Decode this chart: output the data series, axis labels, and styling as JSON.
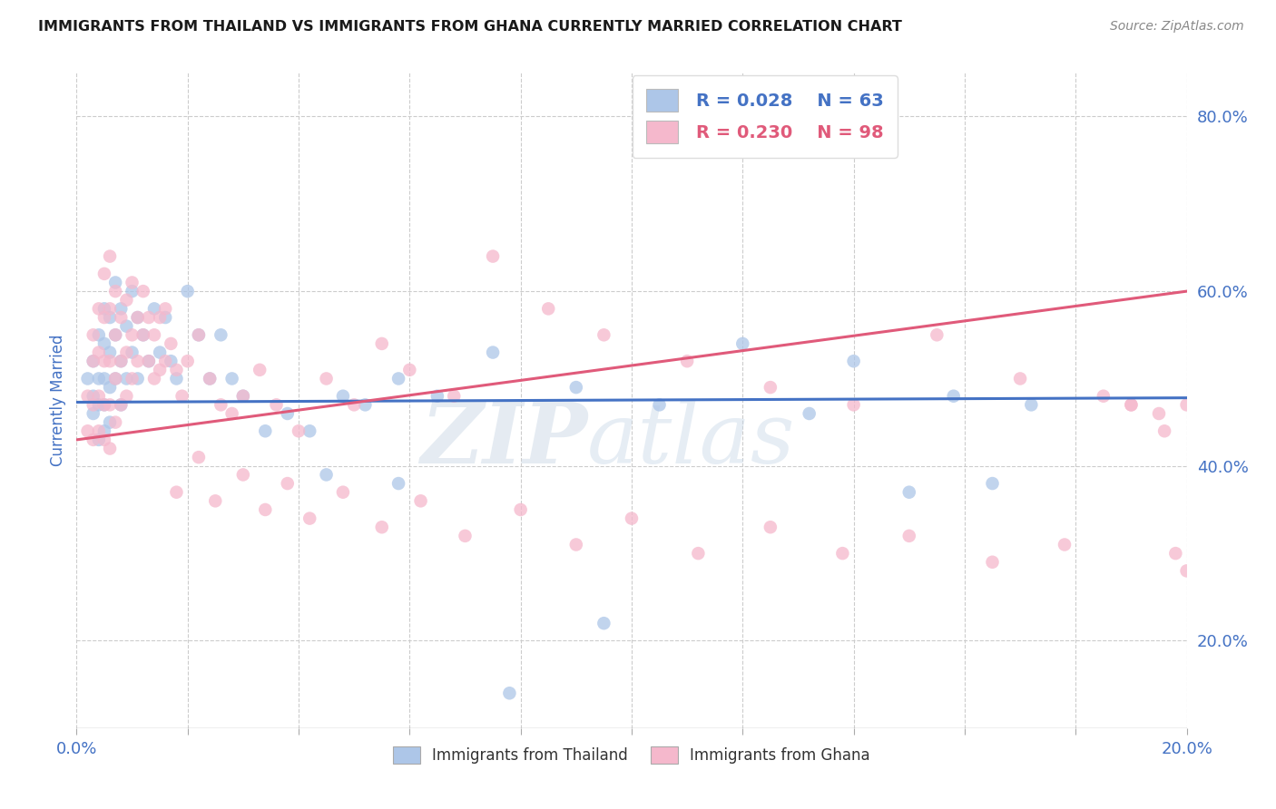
{
  "title": "IMMIGRANTS FROM THAILAND VS IMMIGRANTS FROM GHANA CURRENTLY MARRIED CORRELATION CHART",
  "source": "Source: ZipAtlas.com",
  "ylabel": "Currently Married",
  "xlim": [
    0.0,
    0.2
  ],
  "ylim": [
    0.1,
    0.85
  ],
  "yticks": [
    0.2,
    0.4,
    0.6,
    0.8
  ],
  "ytick_labels": [
    "20.0%",
    "40.0%",
    "60.0%",
    "80.0%"
  ],
  "xticks": [
    0.0,
    0.02,
    0.04,
    0.06,
    0.08,
    0.1,
    0.12,
    0.14,
    0.16,
    0.18,
    0.2
  ],
  "xtick_labels_show": [
    "0.0%",
    "20.0%"
  ],
  "thailand_color": "#adc6e8",
  "ghana_color": "#f5b8cc",
  "thailand_line_color": "#4472c4",
  "ghana_line_color": "#e05a7a",
  "legend_R_thailand": "R = 0.028",
  "legend_N_thailand": "N = 63",
  "legend_R_ghana": "R = 0.230",
  "legend_N_ghana": "N = 98",
  "thailand_scatter_x": [
    0.002,
    0.003,
    0.003,
    0.003,
    0.004,
    0.004,
    0.004,
    0.004,
    0.005,
    0.005,
    0.005,
    0.005,
    0.005,
    0.006,
    0.006,
    0.006,
    0.006,
    0.007,
    0.007,
    0.007,
    0.008,
    0.008,
    0.008,
    0.009,
    0.009,
    0.01,
    0.01,
    0.011,
    0.011,
    0.012,
    0.013,
    0.014,
    0.015,
    0.016,
    0.017,
    0.018,
    0.02,
    0.022,
    0.024,
    0.026,
    0.028,
    0.03,
    0.034,
    0.038,
    0.042,
    0.048,
    0.052,
    0.058,
    0.065,
    0.075,
    0.09,
    0.105,
    0.12,
    0.14,
    0.158,
    0.172,
    0.15,
    0.165,
    0.132,
    0.095,
    0.078,
    0.058,
    0.045
  ],
  "thailand_scatter_y": [
    0.5,
    0.48,
    0.46,
    0.52,
    0.55,
    0.5,
    0.47,
    0.43,
    0.58,
    0.54,
    0.5,
    0.47,
    0.44,
    0.57,
    0.53,
    0.49,
    0.45,
    0.61,
    0.55,
    0.5,
    0.58,
    0.52,
    0.47,
    0.56,
    0.5,
    0.6,
    0.53,
    0.57,
    0.5,
    0.55,
    0.52,
    0.58,
    0.53,
    0.57,
    0.52,
    0.5,
    0.6,
    0.55,
    0.5,
    0.55,
    0.5,
    0.48,
    0.44,
    0.46,
    0.44,
    0.48,
    0.47,
    0.5,
    0.48,
    0.53,
    0.49,
    0.47,
    0.54,
    0.52,
    0.48,
    0.47,
    0.37,
    0.38,
    0.46,
    0.22,
    0.14,
    0.38,
    0.39
  ],
  "ghana_scatter_x": [
    0.002,
    0.002,
    0.003,
    0.003,
    0.003,
    0.003,
    0.004,
    0.004,
    0.004,
    0.004,
    0.005,
    0.005,
    0.005,
    0.005,
    0.005,
    0.006,
    0.006,
    0.006,
    0.006,
    0.006,
    0.007,
    0.007,
    0.007,
    0.007,
    0.008,
    0.008,
    0.008,
    0.009,
    0.009,
    0.009,
    0.01,
    0.01,
    0.01,
    0.011,
    0.011,
    0.012,
    0.012,
    0.013,
    0.013,
    0.014,
    0.014,
    0.015,
    0.015,
    0.016,
    0.016,
    0.017,
    0.018,
    0.019,
    0.02,
    0.022,
    0.024,
    0.026,
    0.028,
    0.03,
    0.033,
    0.036,
    0.04,
    0.045,
    0.05,
    0.055,
    0.06,
    0.068,
    0.075,
    0.085,
    0.095,
    0.11,
    0.125,
    0.14,
    0.155,
    0.17,
    0.185,
    0.19,
    0.195,
    0.018,
    0.022,
    0.025,
    0.03,
    0.034,
    0.038,
    0.042,
    0.048,
    0.055,
    0.062,
    0.07,
    0.08,
    0.09,
    0.1,
    0.112,
    0.125,
    0.138,
    0.15,
    0.165,
    0.178,
    0.19,
    0.196,
    0.198,
    0.2,
    0.2
  ],
  "ghana_scatter_y": [
    0.48,
    0.44,
    0.52,
    0.47,
    0.43,
    0.55,
    0.58,
    0.53,
    0.48,
    0.44,
    0.62,
    0.57,
    0.52,
    0.47,
    0.43,
    0.64,
    0.58,
    0.52,
    0.47,
    0.42,
    0.6,
    0.55,
    0.5,
    0.45,
    0.57,
    0.52,
    0.47,
    0.59,
    0.53,
    0.48,
    0.61,
    0.55,
    0.5,
    0.57,
    0.52,
    0.6,
    0.55,
    0.57,
    0.52,
    0.55,
    0.5,
    0.57,
    0.51,
    0.58,
    0.52,
    0.54,
    0.51,
    0.48,
    0.52,
    0.55,
    0.5,
    0.47,
    0.46,
    0.48,
    0.51,
    0.47,
    0.44,
    0.5,
    0.47,
    0.54,
    0.51,
    0.48,
    0.64,
    0.58,
    0.55,
    0.52,
    0.49,
    0.47,
    0.55,
    0.5,
    0.48,
    0.47,
    0.46,
    0.37,
    0.41,
    0.36,
    0.39,
    0.35,
    0.38,
    0.34,
    0.37,
    0.33,
    0.36,
    0.32,
    0.35,
    0.31,
    0.34,
    0.3,
    0.33,
    0.3,
    0.32,
    0.29,
    0.31,
    0.47,
    0.44,
    0.3,
    0.28,
    0.47
  ],
  "thailand_trend_x": [
    0.0,
    0.2
  ],
  "thailand_trend_y": [
    0.473,
    0.478
  ],
  "ghana_trend_x": [
    0.0,
    0.2
  ],
  "ghana_trend_y": [
    0.43,
    0.6
  ],
  "watermark_zip": "ZIP",
  "watermark_atlas": "atlas",
  "background_color": "#ffffff",
  "grid_color": "#cccccc",
  "title_color": "#1a1a1a",
  "axis_label_color": "#4472c4",
  "tick_label_color": "#4472c4",
  "legend_text_color_thailand": "#4472c4",
  "legend_text_color_ghana": "#e05a7a",
  "bottom_legend_label_thailand": "Immigrants from Thailand",
  "bottom_legend_label_ghana": "Immigrants from Ghana"
}
